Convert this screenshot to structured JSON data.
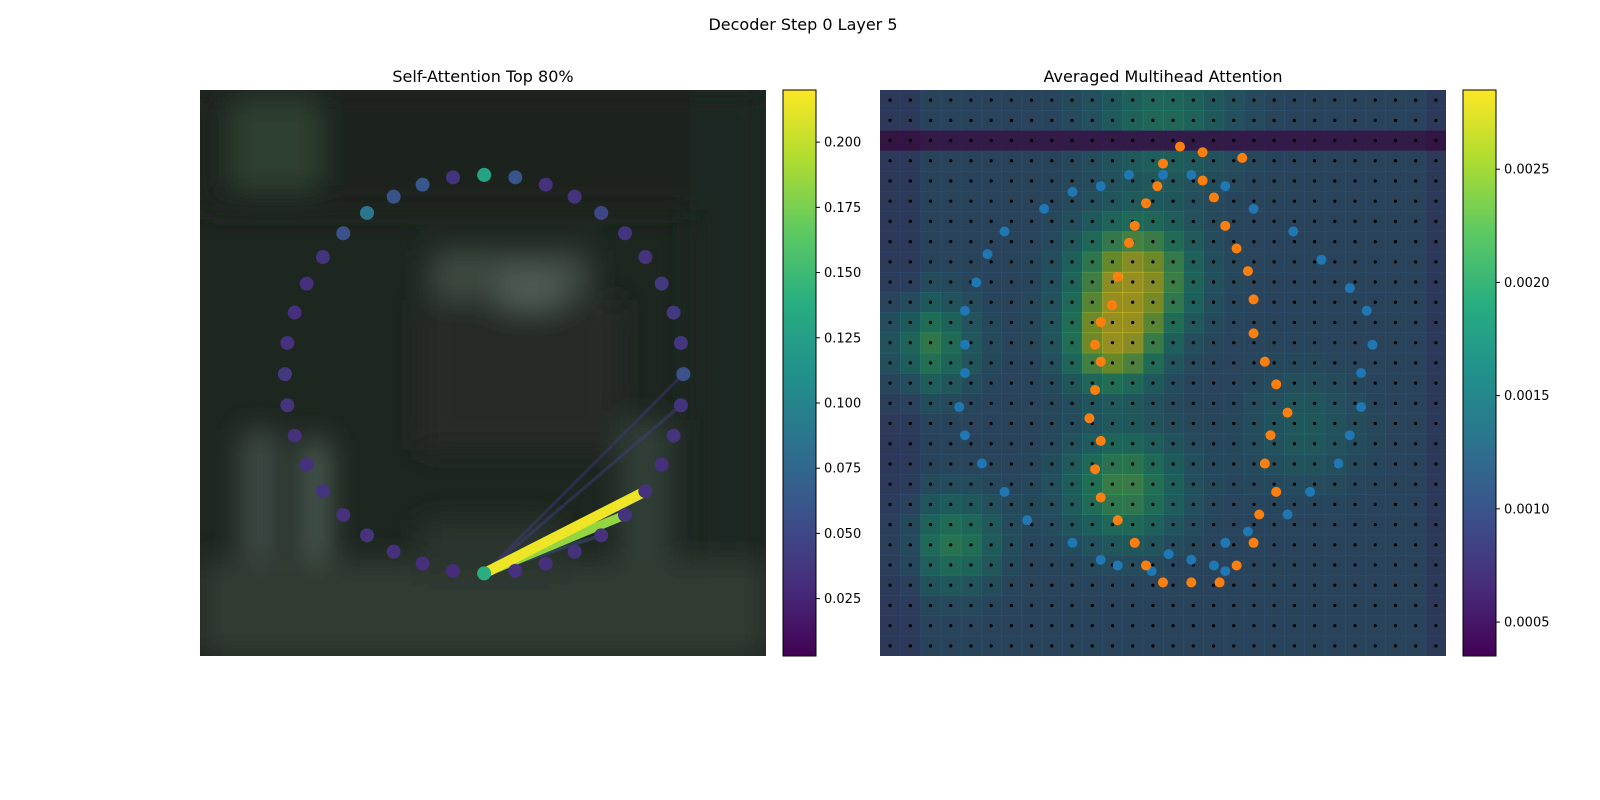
{
  "figure": {
    "suptitle": "Decoder Step 0 Layer 5"
  },
  "chart_data": [
    {
      "type": "scatter",
      "title": "Self-Attention Top 80%",
      "grid": false,
      "background": "blurred photo of an outdoor scene (dark green/grey tones)",
      "points": {
        "count": 40,
        "layout": "ring",
        "query_index": 10,
        "values": [
          0.058,
          0.036,
          0.035,
          0.034,
          0.034,
          0.036,
          0.034,
          0.036,
          0.034,
          0.034,
          0.14,
          0.03,
          0.032,
          0.034,
          0.036,
          0.034,
          0.036,
          0.034,
          0.034,
          0.036,
          0.04,
          0.034,
          0.032,
          0.032,
          0.036,
          0.058,
          0.09,
          0.06,
          0.062,
          0.036,
          0.13,
          0.06,
          0.034,
          0.036,
          0.05,
          0.036,
          0.036,
          0.04,
          0.04,
          0.038
        ]
      },
      "links": [
        {
          "from": 10,
          "to": 4,
          "weight": 0.215
        },
        {
          "from": 10,
          "to": 5,
          "weight": 0.185
        },
        {
          "from": 10,
          "to": 6,
          "weight": 0.06
        },
        {
          "from": 10,
          "to": 1,
          "weight": 0.045
        },
        {
          "from": 10,
          "to": 0,
          "weight": 0.04
        }
      ],
      "colorbar": {
        "min": 0.003,
        "max": 0.22,
        "ticks": [
          0.025,
          0.05,
          0.075,
          0.1,
          0.125,
          0.15,
          0.175,
          0.2
        ],
        "tick_labels": [
          "0.025",
          "0.050",
          "0.075",
          "0.100",
          "0.125",
          "0.150",
          "0.175",
          "0.200"
        ]
      }
    },
    {
      "type": "heatmap",
      "title": "Averaged Multihead Attention",
      "grid_size": [
        28,
        28
      ],
      "colorbar": {
        "min": 0.00035,
        "max": 0.00285,
        "ticks": [
          0.0005,
          0.001,
          0.0015,
          0.002,
          0.0025
        ],
        "tick_labels": [
          "0.0005",
          "0.0010",
          "0.0015",
          "0.0020",
          "0.0025"
        ]
      },
      "hotspots": [
        {
          "cx": 0.45,
          "cy": 0.33,
          "r": 0.1,
          "v": 0.0028
        },
        {
          "cx": 0.41,
          "cy": 0.45,
          "r": 0.08,
          "v": 0.0026
        },
        {
          "cx": 0.43,
          "cy": 0.7,
          "r": 0.1,
          "v": 0.0022
        },
        {
          "cx": 0.08,
          "cy": 0.45,
          "r": 0.08,
          "v": 0.0021
        },
        {
          "cx": 0.13,
          "cy": 0.8,
          "r": 0.08,
          "v": 0.002
        },
        {
          "cx": 0.5,
          "cy": 0.05,
          "r": 0.12,
          "v": 0.0018
        },
        {
          "cx": 0.75,
          "cy": 0.6,
          "r": 0.1,
          "v": 0.0015
        }
      ],
      "base_value": 0.0011,
      "overlays": [
        {
          "name": "blue-ring",
          "color": "#1f77b4",
          "points": [
            [
              0.39,
              0.17
            ],
            [
              0.44,
              0.15
            ],
            [
              0.55,
              0.15
            ],
            [
              0.61,
              0.17
            ],
            [
              0.66,
              0.21
            ],
            [
              0.73,
              0.25
            ],
            [
              0.78,
              0.3
            ],
            [
              0.83,
              0.35
            ],
            [
              0.86,
              0.39
            ],
            [
              0.87,
              0.45
            ],
            [
              0.85,
              0.5
            ],
            [
              0.85,
              0.56
            ],
            [
              0.83,
              0.61
            ],
            [
              0.81,
              0.66
            ],
            [
              0.76,
              0.71
            ],
            [
              0.72,
              0.75
            ],
            [
              0.65,
              0.78
            ],
            [
              0.61,
              0.8
            ],
            [
              0.55,
              0.83
            ],
            [
              0.48,
              0.85
            ],
            [
              0.39,
              0.83
            ],
            [
              0.34,
              0.8
            ],
            [
              0.26,
              0.76
            ],
            [
              0.22,
              0.71
            ],
            [
              0.18,
              0.66
            ],
            [
              0.15,
              0.61
            ],
            [
              0.14,
              0.56
            ],
            [
              0.15,
              0.5
            ],
            [
              0.15,
              0.45
            ],
            [
              0.15,
              0.39
            ],
            [
              0.17,
              0.34
            ],
            [
              0.19,
              0.29
            ],
            [
              0.22,
              0.25
            ],
            [
              0.29,
              0.21
            ],
            [
              0.34,
              0.18
            ],
            [
              0.5,
              0.15
            ],
            [
              0.59,
              0.84
            ],
            [
              0.51,
              0.82
            ],
            [
              0.61,
              0.85
            ],
            [
              0.42,
              0.84
            ]
          ]
        },
        {
          "name": "orange-ring",
          "color": "#ff7f0e",
          "points": [
            [
              0.53,
              0.1
            ],
            [
              0.57,
              0.11
            ],
            [
              0.5,
              0.13
            ],
            [
              0.49,
              0.17
            ],
            [
              0.47,
              0.2
            ],
            [
              0.45,
              0.24
            ],
            [
              0.44,
              0.27
            ],
            [
              0.42,
              0.33
            ],
            [
              0.41,
              0.38
            ],
            [
              0.39,
              0.41
            ],
            [
              0.38,
              0.45
            ],
            [
              0.39,
              0.48
            ],
            [
              0.38,
              0.53
            ],
            [
              0.37,
              0.58
            ],
            [
              0.39,
              0.62
            ],
            [
              0.38,
              0.67
            ],
            [
              0.39,
              0.72
            ],
            [
              0.42,
              0.76
            ],
            [
              0.45,
              0.8
            ],
            [
              0.47,
              0.84
            ],
            [
              0.5,
              0.87
            ],
            [
              0.55,
              0.87
            ],
            [
              0.6,
              0.87
            ],
            [
              0.63,
              0.84
            ],
            [
              0.66,
              0.8
            ],
            [
              0.67,
              0.75
            ],
            [
              0.7,
              0.71
            ],
            [
              0.68,
              0.66
            ],
            [
              0.69,
              0.61
            ],
            [
              0.72,
              0.57
            ],
            [
              0.7,
              0.52
            ],
            [
              0.68,
              0.48
            ],
            [
              0.66,
              0.43
            ],
            [
              0.66,
              0.37
            ],
            [
              0.65,
              0.32
            ],
            [
              0.63,
              0.28
            ],
            [
              0.61,
              0.24
            ],
            [
              0.59,
              0.19
            ],
            [
              0.57,
              0.16
            ],
            [
              0.64,
              0.12
            ]
          ]
        }
      ]
    }
  ]
}
